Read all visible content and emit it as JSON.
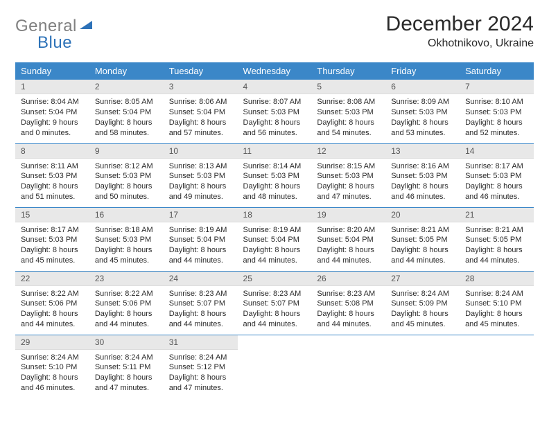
{
  "logo": {
    "gray": "General",
    "blue": "Blue"
  },
  "title": "December 2024",
  "location": "Okhotnikovo, Ukraine",
  "colors": {
    "header_bg": "#3b87c8",
    "header_text": "#ffffff",
    "daynum_bg": "#e8e8e8",
    "border": "#3b87c8",
    "logo_gray": "#808080",
    "logo_blue": "#2d72b8"
  },
  "weekdays": [
    "Sunday",
    "Monday",
    "Tuesday",
    "Wednesday",
    "Thursday",
    "Friday",
    "Saturday"
  ],
  "labels": {
    "sunrise": "Sunrise:",
    "sunset": "Sunset:",
    "daylight": "Daylight:"
  },
  "days": [
    {
      "n": 1,
      "sunrise": "8:04 AM",
      "sunset": "5:04 PM",
      "daylight": "9 hours and 0 minutes."
    },
    {
      "n": 2,
      "sunrise": "8:05 AM",
      "sunset": "5:04 PM",
      "daylight": "8 hours and 58 minutes."
    },
    {
      "n": 3,
      "sunrise": "8:06 AM",
      "sunset": "5:04 PM",
      "daylight": "8 hours and 57 minutes."
    },
    {
      "n": 4,
      "sunrise": "8:07 AM",
      "sunset": "5:03 PM",
      "daylight": "8 hours and 56 minutes."
    },
    {
      "n": 5,
      "sunrise": "8:08 AM",
      "sunset": "5:03 PM",
      "daylight": "8 hours and 54 minutes."
    },
    {
      "n": 6,
      "sunrise": "8:09 AM",
      "sunset": "5:03 PM",
      "daylight": "8 hours and 53 minutes."
    },
    {
      "n": 7,
      "sunrise": "8:10 AM",
      "sunset": "5:03 PM",
      "daylight": "8 hours and 52 minutes."
    },
    {
      "n": 8,
      "sunrise": "8:11 AM",
      "sunset": "5:03 PM",
      "daylight": "8 hours and 51 minutes."
    },
    {
      "n": 9,
      "sunrise": "8:12 AM",
      "sunset": "5:03 PM",
      "daylight": "8 hours and 50 minutes."
    },
    {
      "n": 10,
      "sunrise": "8:13 AM",
      "sunset": "5:03 PM",
      "daylight": "8 hours and 49 minutes."
    },
    {
      "n": 11,
      "sunrise": "8:14 AM",
      "sunset": "5:03 PM",
      "daylight": "8 hours and 48 minutes."
    },
    {
      "n": 12,
      "sunrise": "8:15 AM",
      "sunset": "5:03 PM",
      "daylight": "8 hours and 47 minutes."
    },
    {
      "n": 13,
      "sunrise": "8:16 AM",
      "sunset": "5:03 PM",
      "daylight": "8 hours and 46 minutes."
    },
    {
      "n": 14,
      "sunrise": "8:17 AM",
      "sunset": "5:03 PM",
      "daylight": "8 hours and 46 minutes."
    },
    {
      "n": 15,
      "sunrise": "8:17 AM",
      "sunset": "5:03 PM",
      "daylight": "8 hours and 45 minutes."
    },
    {
      "n": 16,
      "sunrise": "8:18 AM",
      "sunset": "5:03 PM",
      "daylight": "8 hours and 45 minutes."
    },
    {
      "n": 17,
      "sunrise": "8:19 AM",
      "sunset": "5:04 PM",
      "daylight": "8 hours and 44 minutes."
    },
    {
      "n": 18,
      "sunrise": "8:19 AM",
      "sunset": "5:04 PM",
      "daylight": "8 hours and 44 minutes."
    },
    {
      "n": 19,
      "sunrise": "8:20 AM",
      "sunset": "5:04 PM",
      "daylight": "8 hours and 44 minutes."
    },
    {
      "n": 20,
      "sunrise": "8:21 AM",
      "sunset": "5:05 PM",
      "daylight": "8 hours and 44 minutes."
    },
    {
      "n": 21,
      "sunrise": "8:21 AM",
      "sunset": "5:05 PM",
      "daylight": "8 hours and 44 minutes."
    },
    {
      "n": 22,
      "sunrise": "8:22 AM",
      "sunset": "5:06 PM",
      "daylight": "8 hours and 44 minutes."
    },
    {
      "n": 23,
      "sunrise": "8:22 AM",
      "sunset": "5:06 PM",
      "daylight": "8 hours and 44 minutes."
    },
    {
      "n": 24,
      "sunrise": "8:23 AM",
      "sunset": "5:07 PM",
      "daylight": "8 hours and 44 minutes."
    },
    {
      "n": 25,
      "sunrise": "8:23 AM",
      "sunset": "5:07 PM",
      "daylight": "8 hours and 44 minutes."
    },
    {
      "n": 26,
      "sunrise": "8:23 AM",
      "sunset": "5:08 PM",
      "daylight": "8 hours and 44 minutes."
    },
    {
      "n": 27,
      "sunrise": "8:24 AM",
      "sunset": "5:09 PM",
      "daylight": "8 hours and 45 minutes."
    },
    {
      "n": 28,
      "sunrise": "8:24 AM",
      "sunset": "5:10 PM",
      "daylight": "8 hours and 45 minutes."
    },
    {
      "n": 29,
      "sunrise": "8:24 AM",
      "sunset": "5:10 PM",
      "daylight": "8 hours and 46 minutes."
    },
    {
      "n": 30,
      "sunrise": "8:24 AM",
      "sunset": "5:11 PM",
      "daylight": "8 hours and 47 minutes."
    },
    {
      "n": 31,
      "sunrise": "8:24 AM",
      "sunset": "5:12 PM",
      "daylight": "8 hours and 47 minutes."
    }
  ],
  "calendar_layout": {
    "start_weekday": 0,
    "rows": 5,
    "cols": 7
  }
}
